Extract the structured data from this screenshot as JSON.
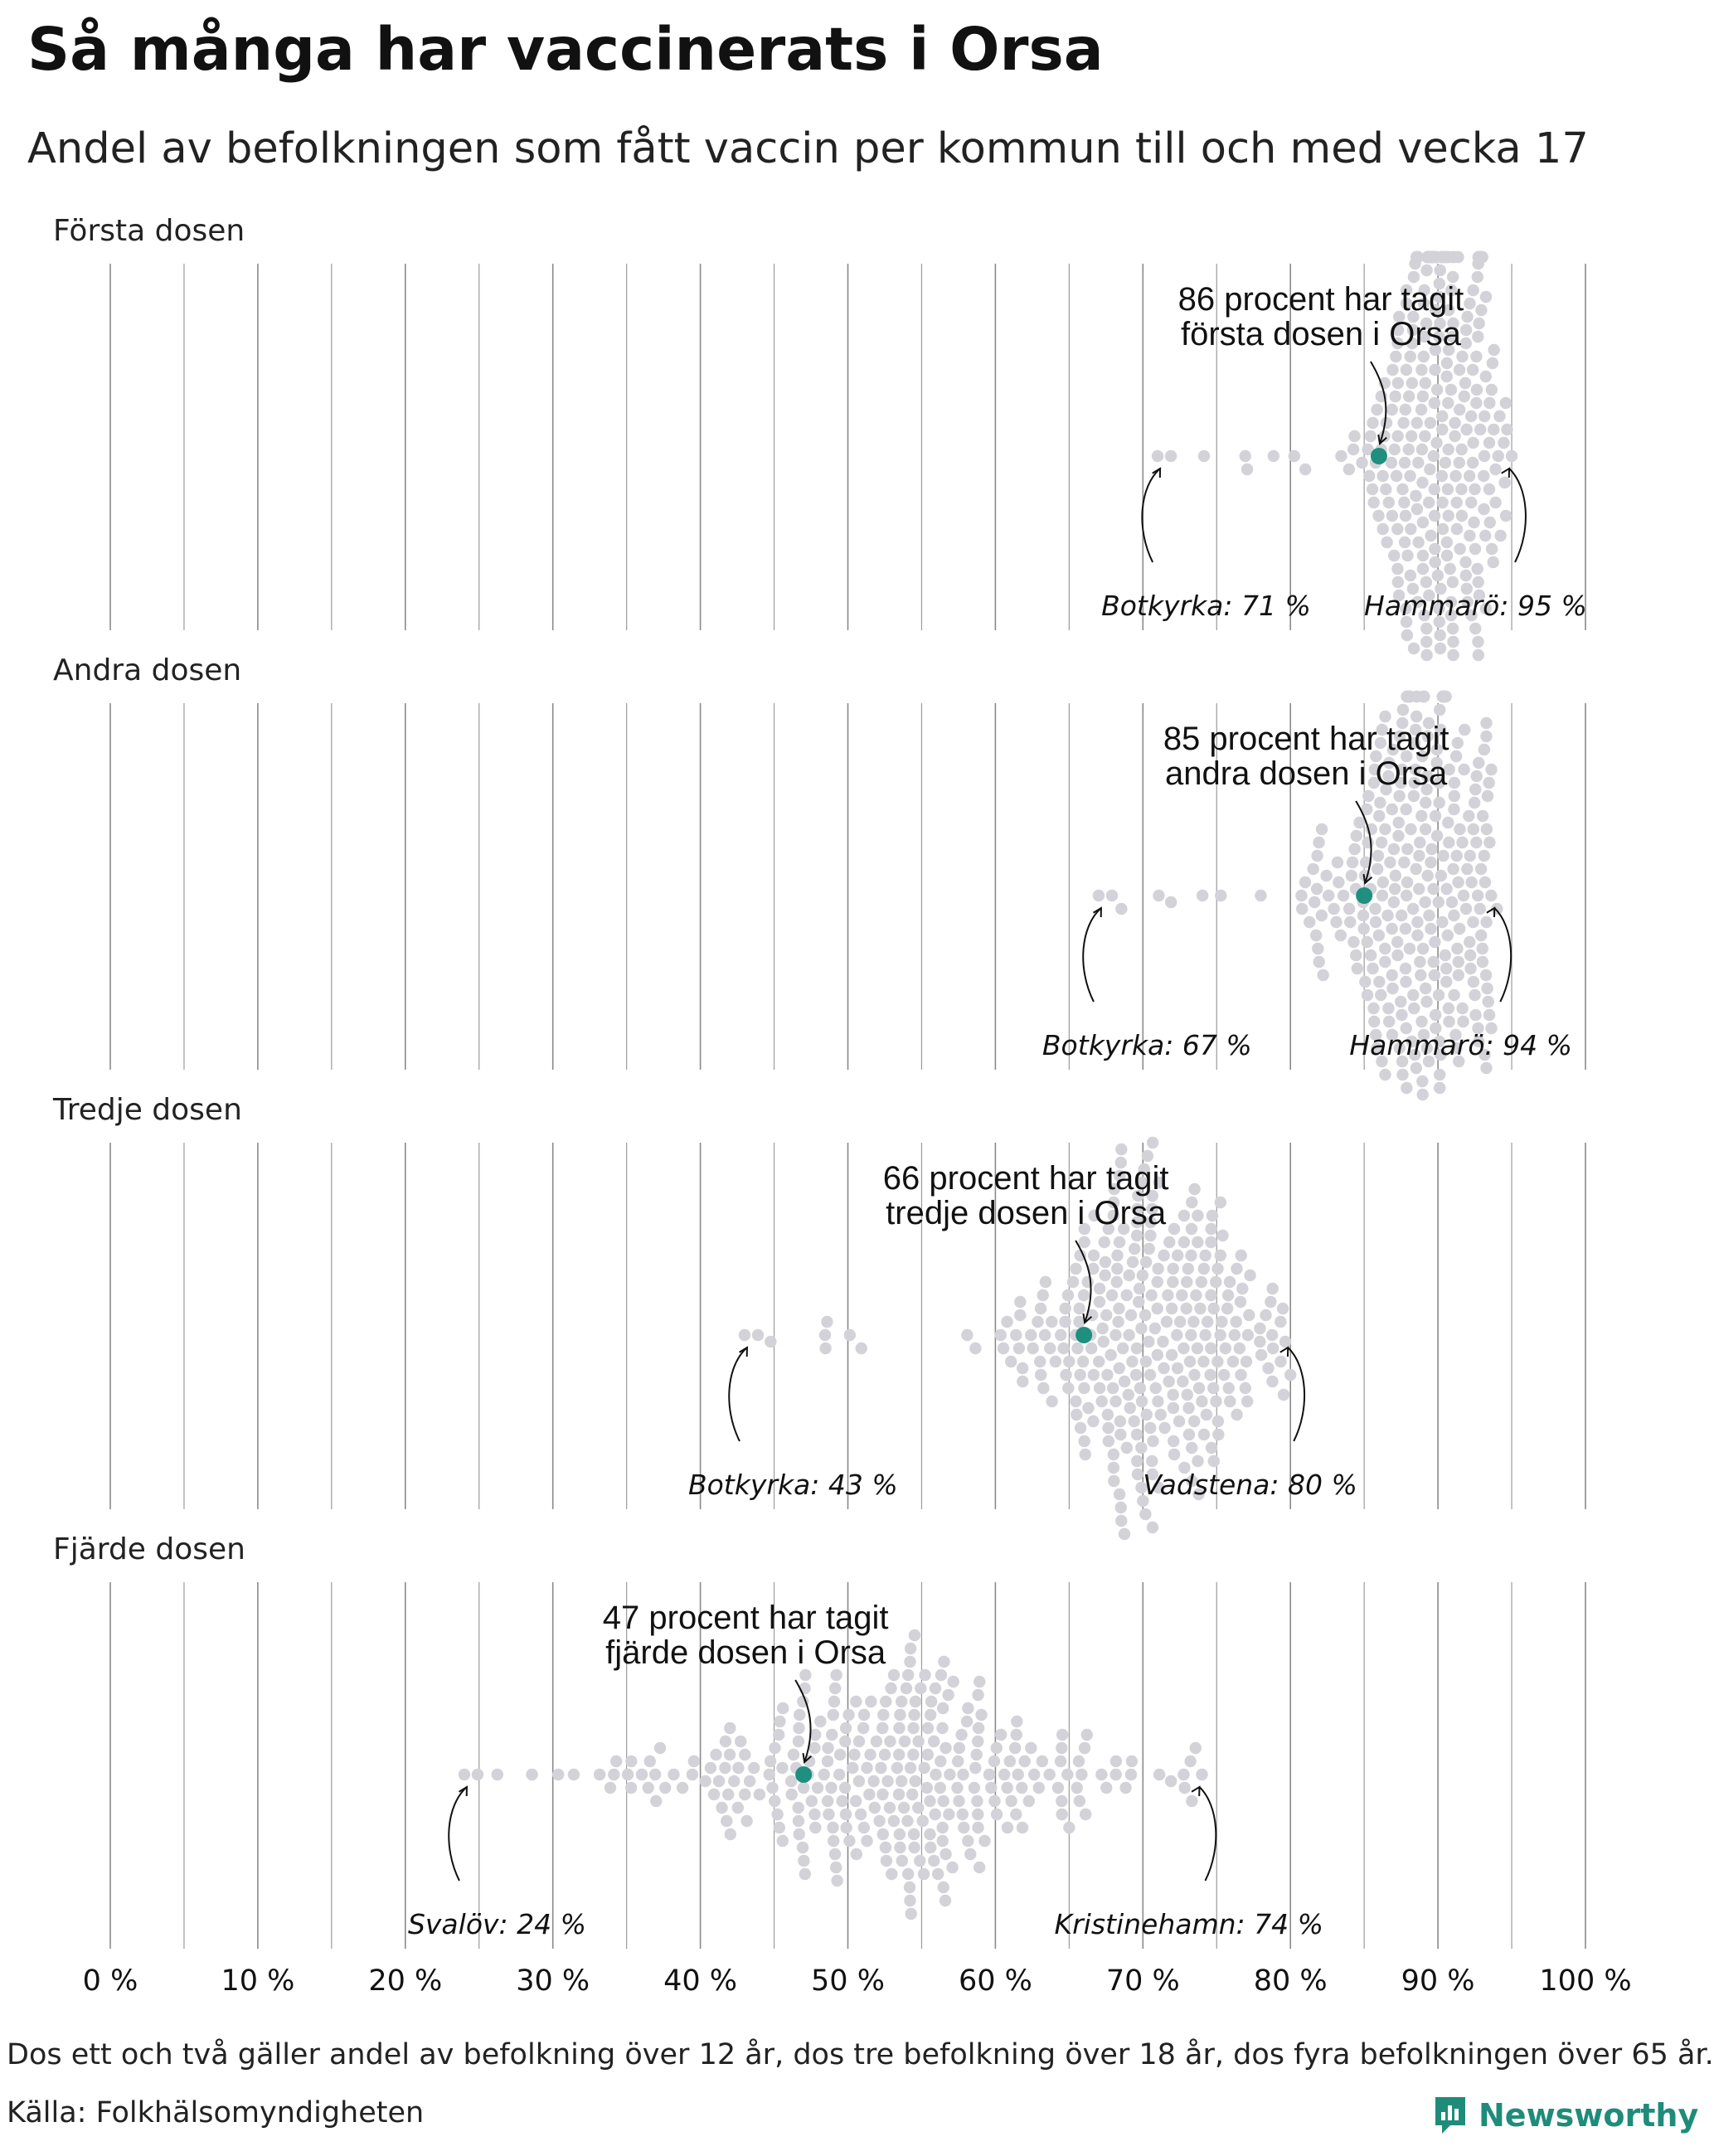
{
  "title": "Så många har vaccinerats i Orsa",
  "subtitle": "Andel av befolkningen som fått vaccin per kommun till och med vecka 17",
  "footnote": "Dos ett och två gäller andel av befolkning över 12 år, dos tre befolkning över 18 år, dos fyra befolkningen över 65 år.",
  "source": "Källa: Folkhälsomyndigheten",
  "brand": "Newsworthy",
  "colors": {
    "highlight": "#1f8f7f",
    "dot": "#d3d2d8",
    "grid": "#8a8a8a",
    "text": "#111111"
  },
  "chart_data": {
    "type": "scatter",
    "subtype": "beeswarm",
    "xlim": [
      0,
      100
    ],
    "x_ticks": [
      0,
      10,
      20,
      30,
      40,
      50,
      60,
      70,
      80,
      90,
      100
    ],
    "x_tick_labels": [
      "0 %",
      "10 %",
      "20 %",
      "30 %",
      "40 %",
      "50 %",
      "60 %",
      "70 %",
      "80 %",
      "90 %",
      "100 %"
    ],
    "grid": true,
    "panels": [
      {
        "label": "Första dosen",
        "annotation_line1": "86 procent har tagit",
        "annotation_line2": "första dosen i Orsa",
        "highlight": {
          "name": "Orsa",
          "value": 86
        },
        "min": {
          "label": "Botkyrka: 71 %",
          "name": "Botkyrka",
          "value": 71
        },
        "max": {
          "label": "Hammarö: 95 %",
          "name": "Hammarö",
          "value": 95
        },
        "distribution": {
          "center": 90,
          "spread": 2.5,
          "count": 290
        }
      },
      {
        "label": "Andra dosen",
        "annotation_line1": "85 procent har tagit",
        "annotation_line2": "andra dosen i Orsa",
        "highlight": {
          "name": "Orsa",
          "value": 85
        },
        "min": {
          "label": "Botkyrka: 67 %",
          "name": "Botkyrka",
          "value": 67
        },
        "max": {
          "label": "Hammarö: 94 %",
          "name": "Hammarö",
          "value": 94
        },
        "distribution": {
          "center": 88.5,
          "spread": 3.2,
          "count": 290
        }
      },
      {
        "label": "Tredje dosen",
        "annotation_line1": "66 procent har tagit",
        "annotation_line2": "tredje dosen i Orsa",
        "highlight": {
          "name": "Orsa",
          "value": 66
        },
        "min": {
          "label": "Botkyrka: 43 %",
          "name": "Botkyrka",
          "value": 43
        },
        "max": {
          "label": "Vadstena: 80 %",
          "name": "Vadstena",
          "value": 80
        },
        "distribution": {
          "center": 70,
          "spread": 4.5,
          "count": 290
        }
      },
      {
        "label": "Fjärde dosen",
        "annotation_line1": "47 procent har tagit",
        "annotation_line2": "fjärde dosen i Orsa",
        "highlight": {
          "name": "Orsa",
          "value": 47
        },
        "min": {
          "label": "Svalöv: 24 %",
          "name": "Svalöv",
          "value": 24
        },
        "max": {
          "label": "Kristinehamn: 74 %",
          "name": "Kristinehamn",
          "value": 74
        },
        "distribution": {
          "center": 52,
          "spread": 8.5,
          "count": 290
        }
      }
    ]
  }
}
